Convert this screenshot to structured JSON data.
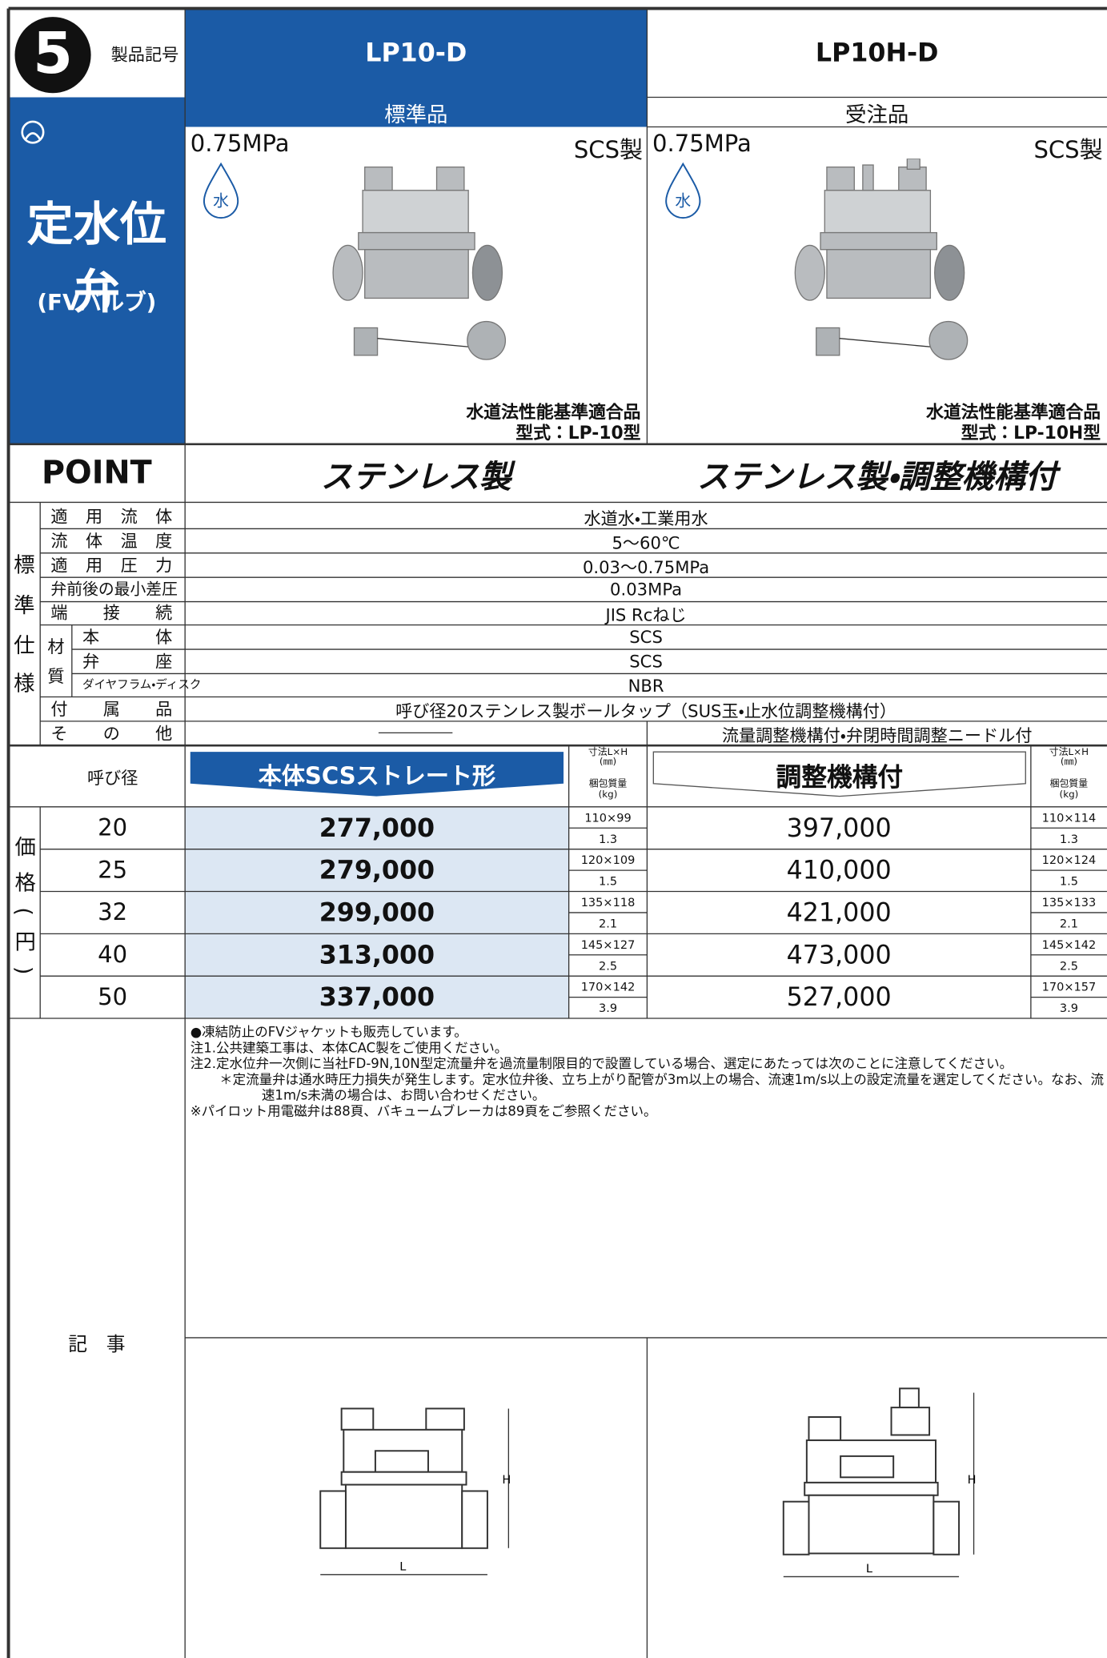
{
  "badge": "5",
  "product_code_label": "製品記号",
  "sidebar": {
    "title": "定水位弁",
    "subtitle": "(FVバルブ)"
  },
  "products": [
    {
      "code": "LP10-D",
      "category": "標準品",
      "pressure": "0.75MPa",
      "material": "SCS製",
      "icon": "水",
      "compliance": "水道法性能基準適合品",
      "model": "型式：LP-10型",
      "point": "ステンレス製"
    },
    {
      "code": "LP10H-D",
      "category": "受注品",
      "pressure": "0.75MPa",
      "material": "SCS製",
      "icon": "水",
      "compliance": "水道法性能基準適合品",
      "model": "型式：LP-10H型",
      "point": "ステンレス製・調整機構付"
    }
  ],
  "point_label": "POINT",
  "spec": {
    "group": [
      "標",
      "準",
      "仕",
      "様"
    ],
    "sub_group": [
      "材",
      "質"
    ],
    "rows": [
      {
        "label": "適用流体",
        "value": "水道水・工業用水"
      },
      {
        "label": "流体温度",
        "value": "5〜60℃"
      },
      {
        "label": "適用圧力",
        "value": "0.03〜0.75MPa"
      },
      {
        "label": "弁前後の最小差圧",
        "value": "0.03MPa"
      },
      {
        "label": "端接続",
        "value": "JIS Rcねじ"
      },
      {
        "label": "本体",
        "value": "SCS"
      },
      {
        "label": "弁座",
        "value": "SCS"
      },
      {
        "label": "ダイヤフラム・ディスク",
        "value": "NBR"
      },
      {
        "label": "付属品",
        "value": "呼び径20ステンレス製ボールタップ（SUS玉・止水位調整機構付）"
      },
      {
        "label": "その他",
        "value_lp10h": "流量調整機構付・弁閉時間調整ニードル付"
      }
    ]
  },
  "price": {
    "group": "価格(円)",
    "size_header": "呼び径",
    "columns": [
      "本体SCSストレート形",
      "調整機構付"
    ],
    "dim_header": [
      "寸法L×H",
      "(㎜)"
    ],
    "weight_header": [
      "梱包質量",
      "(kg)"
    ],
    "rows": [
      {
        "size": "20",
        "price": [
          "277,000",
          "397,000"
        ],
        "dim": [
          "110×99",
          "110×114"
        ],
        "weight": [
          "1.3",
          "1.3"
        ]
      },
      {
        "size": "25",
        "price": [
          "279,000",
          "410,000"
        ],
        "dim": [
          "120×109",
          "120×124"
        ],
        "weight": [
          "1.5",
          "1.5"
        ]
      },
      {
        "size": "32",
        "price": [
          "299,000",
          "421,000"
        ],
        "dim": [
          "135×118",
          "135×133"
        ],
        "weight": [
          "2.1",
          "2.1"
        ]
      },
      {
        "size": "40",
        "price": [
          "313,000",
          "473,000"
        ],
        "dim": [
          "145×127",
          "145×142"
        ],
        "weight": [
          "2.5",
          "2.5"
        ]
      },
      {
        "size": "50",
        "price": [
          "337,000",
          "527,000"
        ],
        "dim": [
          "170×142",
          "170×157"
        ],
        "weight": [
          "3.9",
          "3.9"
        ]
      }
    ]
  },
  "notes_label": "記　事",
  "notes": [
    "●凍結防止のFVジャケットも販売しています。",
    "注1.公共建築工事は、本体CAC製をご使用ください。",
    "注2.定水位弁一次側に当社FD-9N,10N型定流量弁を過流量制限目的で設置している場合、選定にあたっては次のことに注意してください。",
    "＊定流量弁は通水時圧力損失が発生します。定水位弁後、立ち上がり配管が3m以上の場合、流速1m/s以上の設定流量を選定してください。なお、流速1m/s未満の場合は、お問い合わせください。",
    "※パイロット用電磁弁は88頁、バキュームブレーカは89頁をご参照ください。"
  ],
  "diagram_labels": {
    "height": "H",
    "length": "L"
  }
}
